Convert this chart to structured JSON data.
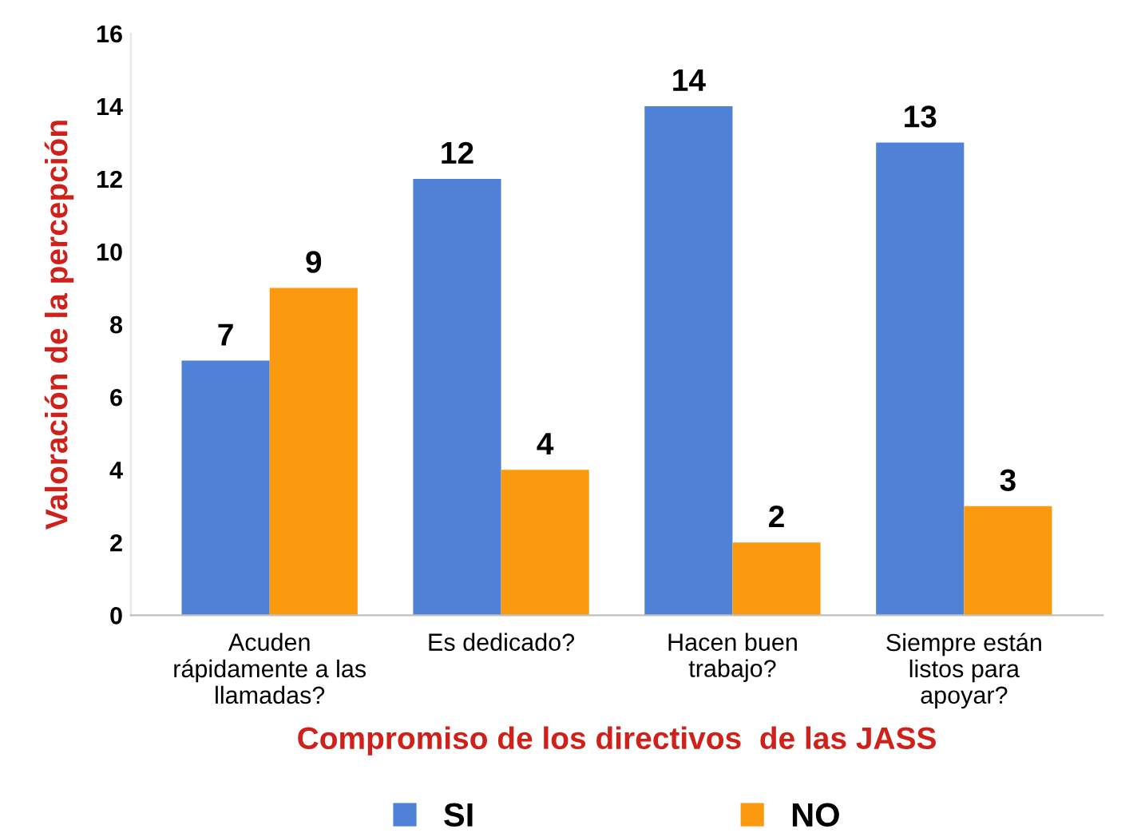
{
  "chart_data": {
    "type": "bar",
    "categories": [
      "Acuden\nrápidamente a las\nllamadas?",
      "Es dedicado?",
      "Hacen buen\ntrabajo?",
      "Siempre están\nlistos para\napoyar?"
    ],
    "series": [
      {
        "name": "SI",
        "color": "#4f81d6",
        "values": [
          7,
          12,
          14,
          13
        ]
      },
      {
        "name": "NO",
        "color": "#fb9a0e",
        "values": [
          9,
          4,
          2,
          3
        ]
      }
    ],
    "xlabel": "Compromiso de los directivos  de las JASS",
    "ylabel": "Valoración de la percepción",
    "ylim": [
      0,
      16
    ],
    "yticks": [
      0,
      2,
      4,
      6,
      8,
      10,
      12,
      14,
      16
    ],
    "data_labels": true,
    "legend": "bottom",
    "grid": false
  }
}
